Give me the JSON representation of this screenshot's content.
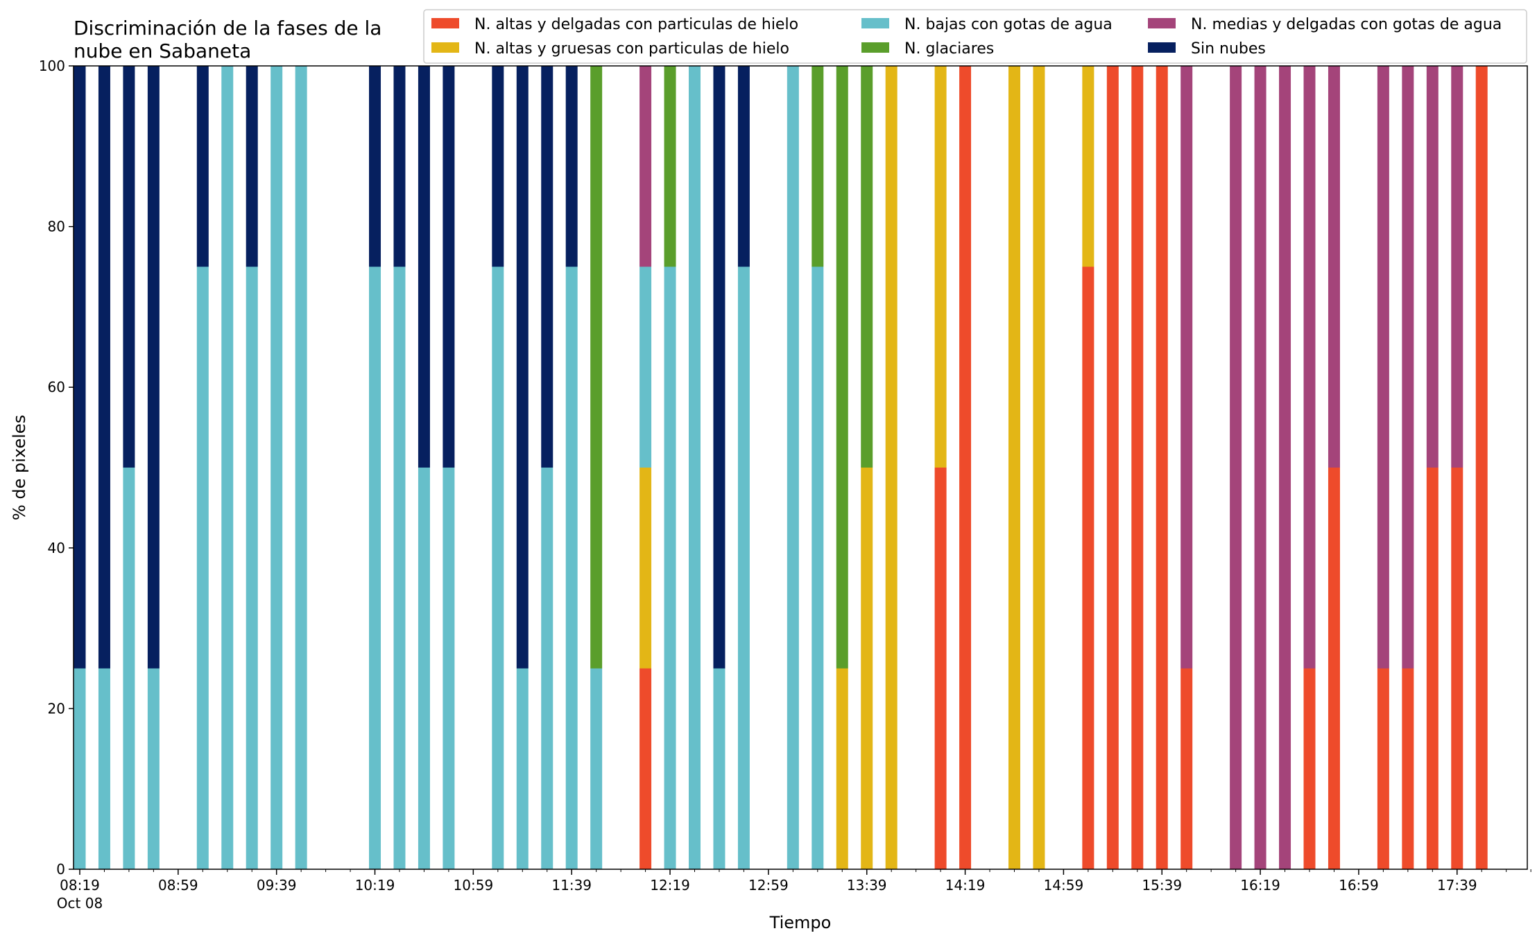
{
  "chart_data": {
    "type": "bar",
    "stacked": true,
    "title_lines": [
      "Discriminación de la fases de la",
      "nube en Sabaneta"
    ],
    "xlabel": "Tiempo",
    "ylabel": "% de pixeles",
    "ylim": [
      0,
      100
    ],
    "yticks": [
      0,
      20,
      40,
      60,
      80,
      100
    ],
    "xlim_minutes": [
      0,
      590
    ],
    "xticks": [
      {
        "minute": 0,
        "label": "08:19",
        "sublabel": "Oct 08"
      },
      {
        "minute": 40,
        "label": "08:59"
      },
      {
        "minute": 80,
        "label": "09:39"
      },
      {
        "minute": 120,
        "label": "10:19"
      },
      {
        "minute": 160,
        "label": "10:59"
      },
      {
        "minute": 200,
        "label": "11:39"
      },
      {
        "minute": 240,
        "label": "12:19"
      },
      {
        "minute": 280,
        "label": "12:59"
      },
      {
        "minute": 320,
        "label": "13:39"
      },
      {
        "minute": 360,
        "label": "14:19"
      },
      {
        "minute": 400,
        "label": "14:59"
      },
      {
        "minute": 440,
        "label": "15:39"
      },
      {
        "minute": 480,
        "label": "16:19"
      },
      {
        "minute": 520,
        "label": "16:59"
      },
      {
        "minute": 560,
        "label": "17:39"
      }
    ],
    "legend_position": "top-right",
    "grid": false,
    "series": [
      {
        "name": "N. altas y delgadas con particulas de hielo",
        "color": "#ee4b2b"
      },
      {
        "name": "N. altas y gruesas con particulas de hielo",
        "color": "#e3b616"
      },
      {
        "name": "N. bajas con gotas de agua",
        "color": "#66bfca"
      },
      {
        "name": "N. glaciares",
        "color": "#5a9e2b"
      },
      {
        "name": "N. medias y delgadas con gotas de agua",
        "color": "#a4447a"
      },
      {
        "name": "Sin nubes",
        "color": "#06205f"
      }
    ],
    "bars": [
      {
        "minute": 0,
        "values": [
          0,
          0,
          25,
          0,
          0,
          75
        ]
      },
      {
        "minute": 10,
        "values": [
          0,
          0,
          25,
          0,
          0,
          75
        ]
      },
      {
        "minute": 20,
        "values": [
          0,
          0,
          50,
          0,
          0,
          50
        ]
      },
      {
        "minute": 30,
        "values": [
          0,
          0,
          25,
          0,
          0,
          75
        ]
      },
      {
        "minute": 50,
        "values": [
          0,
          0,
          75,
          0,
          0,
          25
        ]
      },
      {
        "minute": 60,
        "values": [
          0,
          0,
          100,
          0,
          0,
          0
        ]
      },
      {
        "minute": 70,
        "values": [
          0,
          0,
          75,
          0,
          0,
          25
        ]
      },
      {
        "minute": 80,
        "values": [
          0,
          0,
          100,
          0,
          0,
          0
        ]
      },
      {
        "minute": 90,
        "values": [
          0,
          0,
          100,
          0,
          0,
          0
        ]
      },
      {
        "minute": 120,
        "values": [
          0,
          0,
          75,
          0,
          0,
          25
        ]
      },
      {
        "minute": 130,
        "values": [
          0,
          0,
          75,
          0,
          0,
          25
        ]
      },
      {
        "minute": 140,
        "values": [
          0,
          0,
          50,
          0,
          0,
          50
        ]
      },
      {
        "minute": 150,
        "values": [
          0,
          0,
          50,
          0,
          0,
          50
        ]
      },
      {
        "minute": 170,
        "values": [
          0,
          0,
          75,
          0,
          0,
          25
        ]
      },
      {
        "minute": 180,
        "values": [
          0,
          0,
          25,
          0,
          0,
          75
        ]
      },
      {
        "minute": 190,
        "values": [
          0,
          0,
          50,
          0,
          0,
          50
        ]
      },
      {
        "minute": 200,
        "values": [
          0,
          0,
          75,
          0,
          0,
          25
        ]
      },
      {
        "minute": 210,
        "values": [
          0,
          0,
          25,
          75,
          0,
          0
        ]
      },
      {
        "minute": 230,
        "values": [
          25,
          25,
          25,
          0,
          25,
          0
        ]
      },
      {
        "minute": 240,
        "values": [
          0,
          0,
          75,
          25,
          0,
          0
        ]
      },
      {
        "minute": 250,
        "values": [
          0,
          0,
          100,
          0,
          0,
          0
        ]
      },
      {
        "minute": 260,
        "values": [
          0,
          0,
          25,
          0,
          0,
          75
        ]
      },
      {
        "minute": 270,
        "values": [
          0,
          0,
          75,
          0,
          0,
          25
        ]
      },
      {
        "minute": 290,
        "values": [
          0,
          0,
          100,
          0,
          0,
          0
        ]
      },
      {
        "minute": 300,
        "values": [
          0,
          0,
          75,
          25,
          0,
          0
        ]
      },
      {
        "minute": 310,
        "values": [
          0,
          25,
          0,
          75,
          0,
          0
        ]
      },
      {
        "minute": 320,
        "values": [
          0,
          50,
          0,
          50,
          0,
          0
        ]
      },
      {
        "minute": 330,
        "values": [
          0,
          100,
          0,
          0,
          0,
          0
        ]
      },
      {
        "minute": 350,
        "values": [
          50,
          50,
          0,
          0,
          0,
          0
        ]
      },
      {
        "minute": 360,
        "values": [
          100,
          0,
          0,
          0,
          0,
          0
        ]
      },
      {
        "minute": 380,
        "values": [
          0,
          100,
          0,
          0,
          0,
          0
        ]
      },
      {
        "minute": 390,
        "values": [
          0,
          100,
          0,
          0,
          0,
          0
        ]
      },
      {
        "minute": 410,
        "values": [
          75,
          25,
          0,
          0,
          0,
          0
        ]
      },
      {
        "minute": 420,
        "values": [
          100,
          0,
          0,
          0,
          0,
          0
        ]
      },
      {
        "minute": 430,
        "values": [
          100,
          0,
          0,
          0,
          0,
          0
        ]
      },
      {
        "minute": 440,
        "values": [
          100,
          0,
          0,
          0,
          0,
          0
        ]
      },
      {
        "minute": 450,
        "values": [
          25,
          0,
          0,
          0,
          75,
          0
        ]
      },
      {
        "minute": 470,
        "values": [
          0,
          0,
          0,
          0,
          100,
          0
        ]
      },
      {
        "minute": 480,
        "values": [
          0,
          0,
          0,
          0,
          100,
          0
        ]
      },
      {
        "minute": 490,
        "values": [
          0,
          0,
          0,
          0,
          100,
          0
        ]
      },
      {
        "minute": 500,
        "values": [
          25,
          0,
          0,
          0,
          75,
          0
        ]
      },
      {
        "minute": 510,
        "values": [
          50,
          0,
          0,
          0,
          50,
          0
        ]
      },
      {
        "minute": 530,
        "values": [
          25,
          0,
          0,
          0,
          75,
          0
        ]
      },
      {
        "minute": 540,
        "values": [
          25,
          0,
          0,
          0,
          75,
          0
        ]
      },
      {
        "minute": 550,
        "values": [
          50,
          0,
          0,
          0,
          50,
          0
        ]
      },
      {
        "minute": 560,
        "values": [
          50,
          0,
          0,
          0,
          50,
          0
        ]
      },
      {
        "minute": 570,
        "values": [
          100,
          0,
          0,
          0,
          0,
          0
        ]
      }
    ]
  }
}
